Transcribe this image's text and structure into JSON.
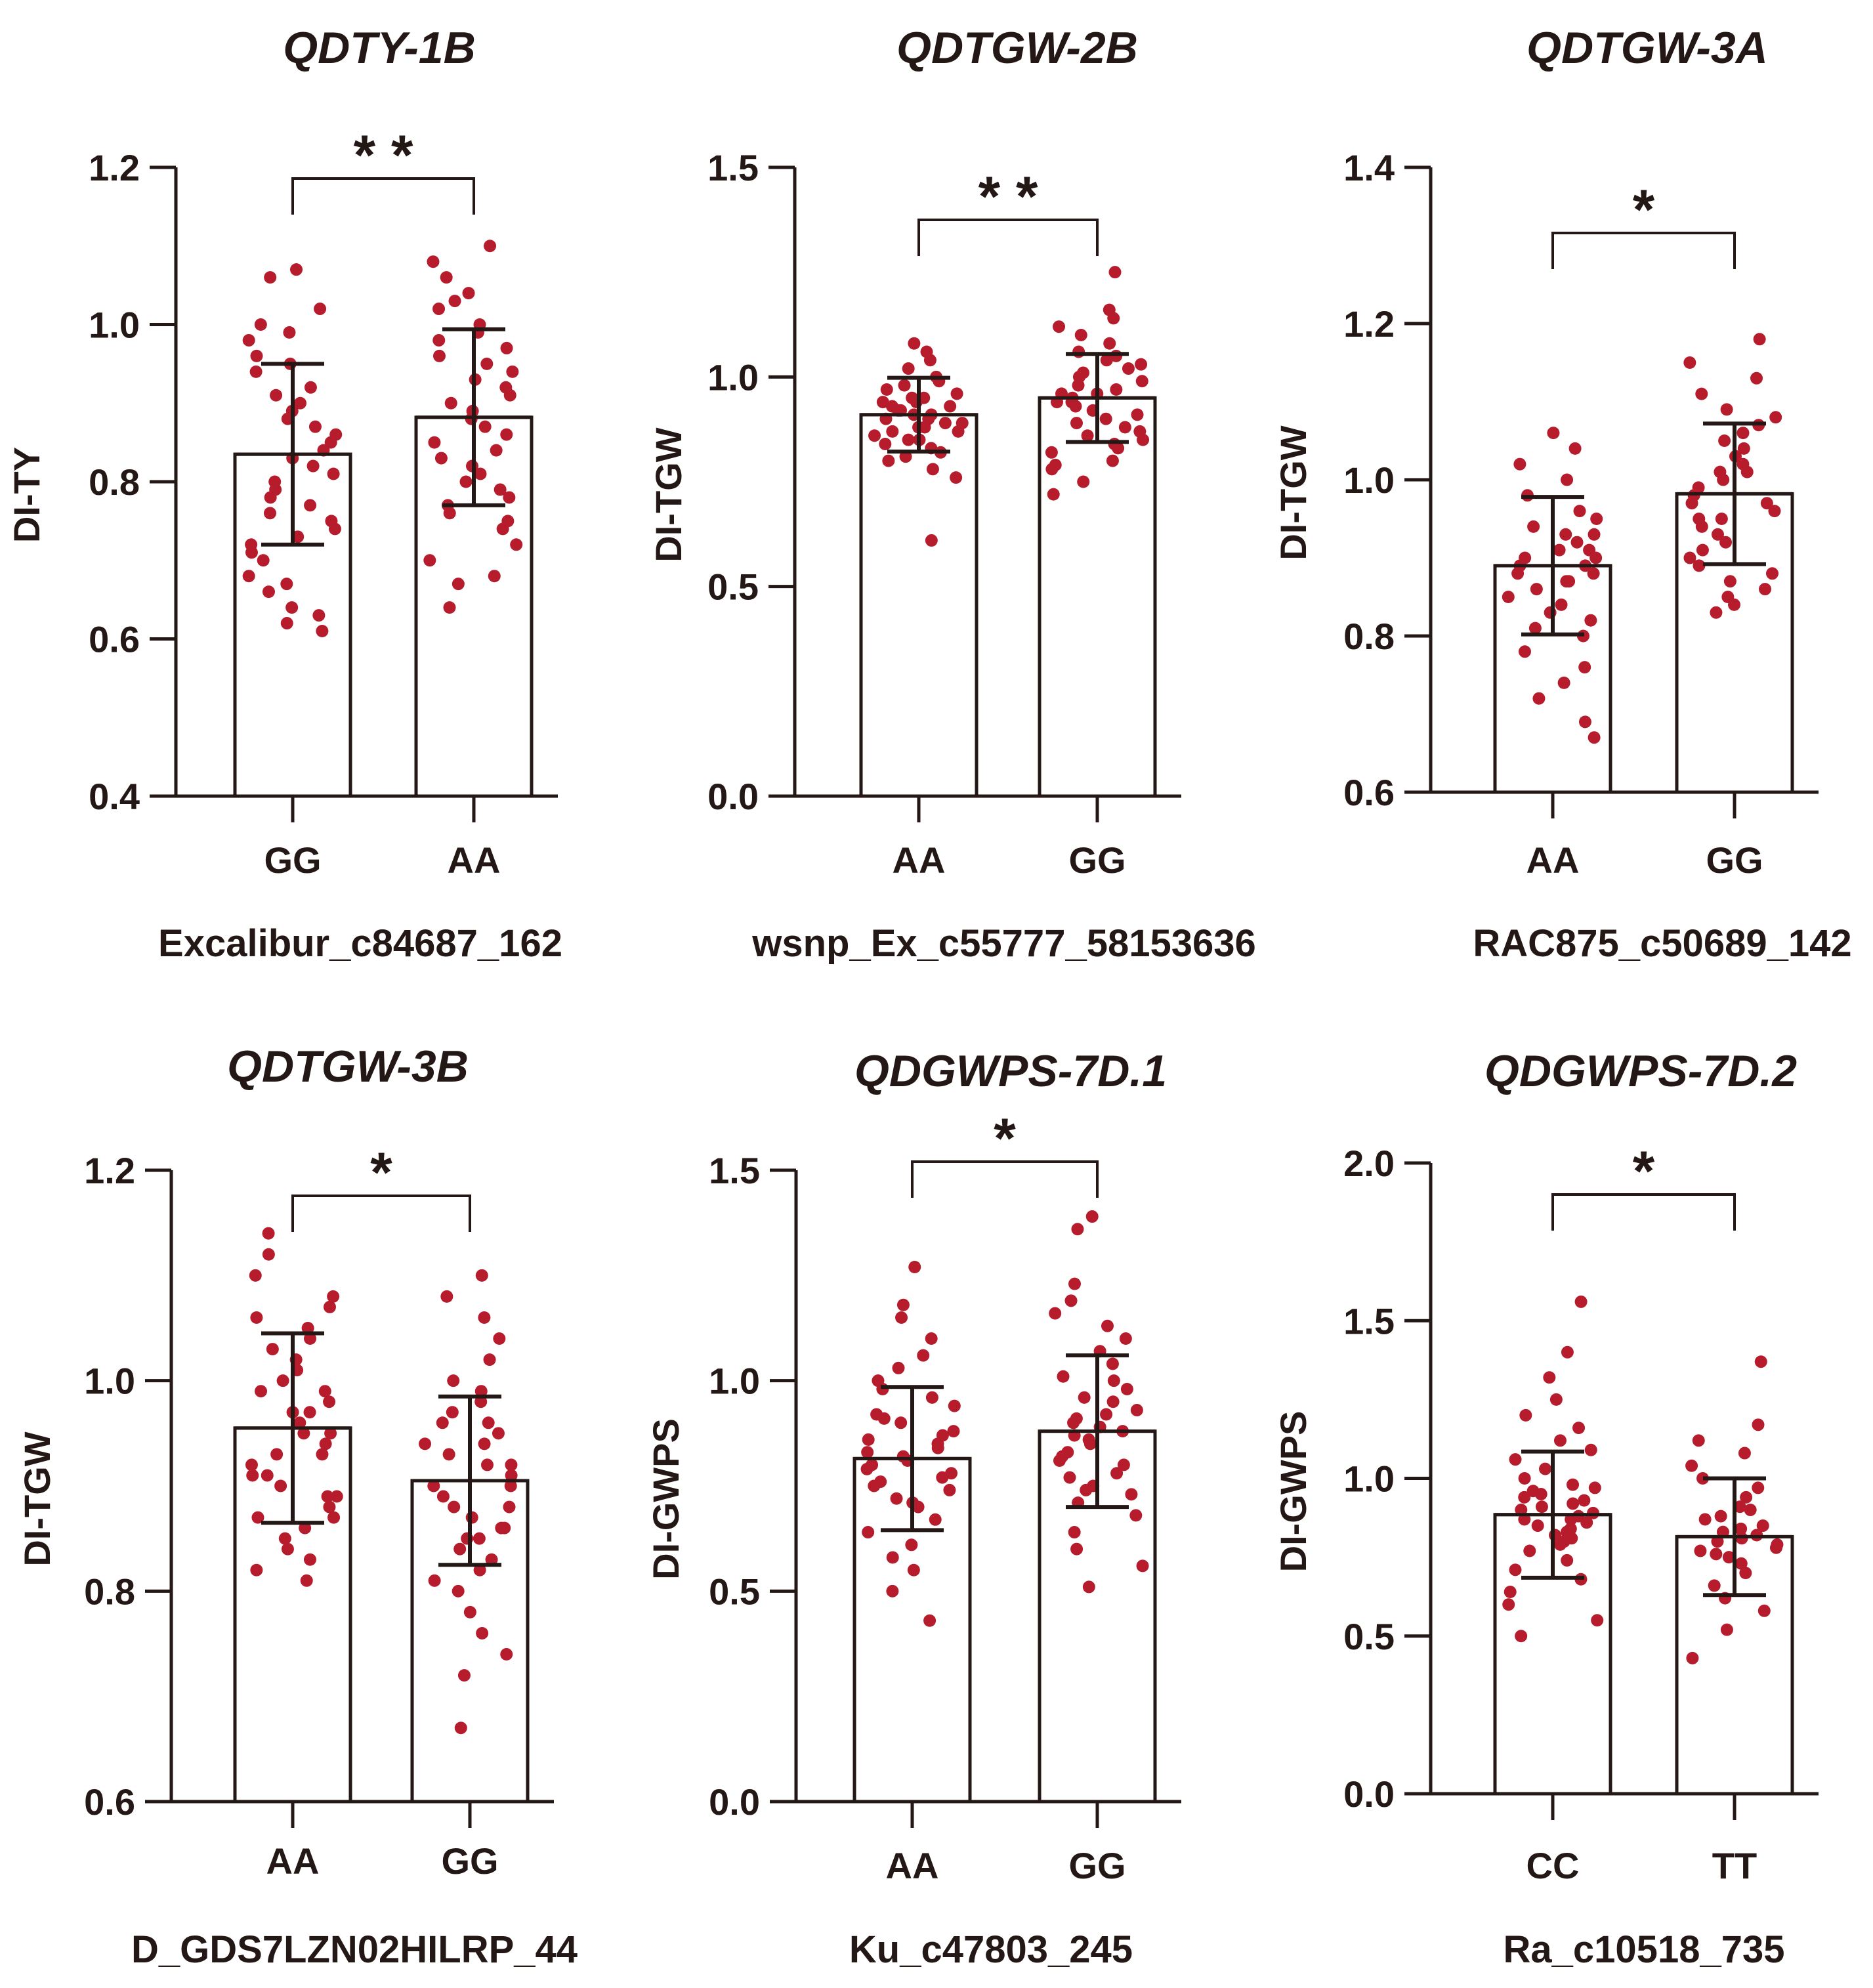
{
  "chart_data": [
    {
      "type": "bar",
      "title": "QDTY-1B",
      "ylabel": "DI-TY",
      "xlabel": "Excalibur_c84687_162",
      "ylim": [
        0.4,
        1.2
      ],
      "yticks": [
        "0.4",
        "0.6",
        "0.8",
        "1.0",
        "1.2"
      ],
      "yticks_values": [
        0.4,
        0.6,
        0.8,
        1.0,
        1.2
      ],
      "categories": [
        "GG",
        "AA"
      ],
      "values": [
        0.835,
        0.882
      ],
      "sd": [
        0.115,
        0.112
      ],
      "significance": "* *",
      "points": [
        [
          0.62,
          0.64,
          0.66,
          0.68,
          0.7,
          0.72,
          0.74,
          0.76,
          0.78,
          0.8,
          0.82,
          0.84,
          0.86,
          0.88,
          0.9,
          0.92,
          0.94,
          0.96,
          0.98,
          1.0,
          1.02,
          1.06,
          0.61,
          0.63,
          0.67,
          0.71,
          0.75,
          0.79,
          0.83,
          0.87,
          0.91,
          0.95,
          0.99,
          1.07,
          0.81,
          0.85,
          0.77,
          0.89,
          0.73
        ],
        [
          0.64,
          0.67,
          0.7,
          0.72,
          0.74,
          0.76,
          0.78,
          0.8,
          0.82,
          0.84,
          0.86,
          0.88,
          0.9,
          0.92,
          0.94,
          0.96,
          0.98,
          1.0,
          1.02,
          1.04,
          1.06,
          1.08,
          1.1,
          0.68,
          0.75,
          0.79,
          0.83,
          0.87,
          0.91,
          0.95,
          0.99,
          1.03,
          0.81,
          0.85,
          0.89,
          0.93,
          0.97,
          0.77
        ]
      ]
    },
    {
      "type": "bar",
      "title": "QDTGW-2B",
      "ylabel": "DI-TGW",
      "xlabel": "wsnp_Ex_c55777_58153636",
      "ylim": [
        0.0,
        1.5
      ],
      "yticks": [
        "0.0",
        "0.5",
        "1.0",
        "1.5"
      ],
      "yticks_values": [
        0.0,
        0.5,
        1.0,
        1.5
      ],
      "categories": [
        "AA",
        "GG"
      ],
      "values": [
        0.91,
        0.95
      ],
      "sd": [
        0.088,
        0.105
      ],
      "significance": "* *",
      "points": [
        [
          0.61,
          0.76,
          0.78,
          0.8,
          0.82,
          0.83,
          0.84,
          0.85,
          0.86,
          0.87,
          0.88,
          0.89,
          0.9,
          0.91,
          0.92,
          0.93,
          0.94,
          0.95,
          0.96,
          0.97,
          0.98,
          1.0,
          1.02,
          1.04,
          1.06,
          1.08,
          0.85,
          0.88,
          0.9,
          0.92,
          0.94,
          0.89,
          0.91,
          0.87,
          0.93,
          0.95,
          0.81,
          0.99
        ],
        [
          0.72,
          0.75,
          0.78,
          0.8,
          0.82,
          0.84,
          0.86,
          0.88,
          0.9,
          0.92,
          0.94,
          0.96,
          0.98,
          1.0,
          1.02,
          1.04,
          1.06,
          1.08,
          1.1,
          1.12,
          1.16,
          1.25,
          0.85,
          0.89,
          0.93,
          0.97,
          1.01,
          0.91,
          0.95,
          0.99,
          1.03,
          0.87,
          0.83,
          0.79,
          1.05,
          0.96,
          0.94,
          1.14
        ]
      ]
    },
    {
      "type": "bar",
      "title": "QDTGW-3A",
      "ylabel": "DI-TGW",
      "xlabel": "RAC875_c50689_142",
      "ylim": [
        0.6,
        1.4
      ],
      "yticks": [
        "0.6",
        "0.8",
        "1.0",
        "1.2",
        "1.4"
      ],
      "yticks_values": [
        0.6,
        0.8,
        1.0,
        1.2,
        1.4
      ],
      "categories": [
        "AA",
        "GG"
      ],
      "values": [
        0.89,
        0.982
      ],
      "sd": [
        0.088,
        0.09
      ],
      "significance": "*",
      "points": [
        [
          0.67,
          0.69,
          0.72,
          0.74,
          0.76,
          0.78,
          0.8,
          0.82,
          0.84,
          0.85,
          0.86,
          0.87,
          0.88,
          0.89,
          0.9,
          0.91,
          0.92,
          0.93,
          0.94,
          0.96,
          0.98,
          1.0,
          1.02,
          1.04,
          1.06,
          0.83,
          0.87,
          0.89,
          0.91,
          0.93,
          0.81,
          0.95,
          0.88,
          0.9
        ],
        [
          0.83,
          0.85,
          0.87,
          0.89,
          0.91,
          0.93,
          0.95,
          0.97,
          0.99,
          1.01,
          1.03,
          1.05,
          1.07,
          1.09,
          1.11,
          1.13,
          1.15,
          1.18,
          0.86,
          0.9,
          0.94,
          0.98,
          1.02,
          1.06,
          0.88,
          0.92,
          0.96,
          1.0,
          1.04,
          0.84,
          1.08,
          0.97,
          0.95,
          1.01
        ]
      ]
    },
    {
      "type": "bar",
      "title": "QDTGW-3B",
      "ylabel": "DI-TGW",
      "xlabel": "D_GDS7LZN02HILRP_44",
      "ylim": [
        0.6,
        1.2
      ],
      "yticks": [
        "0.6",
        "0.8",
        "1.0",
        "1.2"
      ],
      "yticks_values": [
        0.6,
        0.8,
        1.0,
        1.2
      ],
      "categories": [
        "AA",
        "GG"
      ],
      "values": [
        0.955,
        0.905
      ],
      "sd": [
        0.09,
        0.08
      ],
      "significance": "*",
      "points": [
        [
          0.81,
          0.82,
          0.83,
          0.84,
          0.85,
          0.86,
          0.87,
          0.88,
          0.89,
          0.9,
          0.91,
          0.92,
          0.93,
          0.94,
          0.95,
          0.96,
          0.97,
          0.98,
          0.99,
          1.0,
          1.01,
          1.02,
          1.03,
          1.04,
          1.05,
          1.06,
          1.07,
          1.08,
          1.1,
          1.12,
          1.14,
          0.87,
          0.91,
          0.95,
          0.99,
          0.89,
          0.93,
          0.97
        ],
        [
          0.67,
          0.72,
          0.74,
          0.76,
          0.78,
          0.8,
          0.81,
          0.82,
          0.83,
          0.84,
          0.85,
          0.86,
          0.87,
          0.88,
          0.89,
          0.9,
          0.91,
          0.92,
          0.93,
          0.94,
          0.95,
          0.96,
          0.97,
          0.98,
          0.99,
          1.0,
          1.02,
          1.04,
          1.06,
          1.08,
          1.1,
          0.86,
          0.88,
          0.9,
          0.92,
          0.94,
          0.96,
          0.85
        ]
      ]
    },
    {
      "type": "bar",
      "title": "QDGWPS-7D.1",
      "ylabel": "DI-GWPS",
      "xlabel": "Ku_c47803_245",
      "ylim": [
        0.0,
        1.5
      ],
      "yticks": [
        "0.0",
        "0.5",
        "1.0",
        "1.5"
      ],
      "yticks_values": [
        0.0,
        0.5,
        1.0,
        1.5
      ],
      "categories": [
        "AA",
        "GG"
      ],
      "values": [
        0.815,
        0.88
      ],
      "sd": [
        0.17,
        0.18
      ],
      "significance": "*",
      "points": [
        [
          0.43,
          0.5,
          0.55,
          0.58,
          0.61,
          0.64,
          0.67,
          0.7,
          0.72,
          0.74,
          0.76,
          0.78,
          0.8,
          0.82,
          0.84,
          0.86,
          0.88,
          0.9,
          0.92,
          0.94,
          0.96,
          0.98,
          1.0,
          1.03,
          1.06,
          1.1,
          1.15,
          1.18,
          1.27,
          0.71,
          0.75,
          0.79,
          0.83,
          0.87,
          0.91,
          0.77,
          0.81,
          0.85
        ],
        [
          0.51,
          0.56,
          0.6,
          0.64,
          0.68,
          0.71,
          0.74,
          0.77,
          0.8,
          0.83,
          0.86,
          0.89,
          0.92,
          0.95,
          0.98,
          1.01,
          1.04,
          1.07,
          1.1,
          1.13,
          1.16,
          1.19,
          1.23,
          1.36,
          1.39,
          0.73,
          0.78,
          0.82,
          0.87,
          0.91,
          0.96,
          1.0,
          0.85,
          0.88,
          0.93,
          0.81,
          0.75,
          0.9
        ]
      ]
    },
    {
      "type": "bar",
      "title": "QDGWPS-7D.2",
      "ylabel": "DI-GWPS",
      "xlabel": "Ra_c10518_735",
      "ylim": [
        0.0,
        2.0
      ],
      "yticks": [
        "0.0",
        "0.5",
        "1.0",
        "1.5",
        "2.0"
      ],
      "yticks_values": [
        0.0,
        0.5,
        1.0,
        1.5,
        2.0
      ],
      "categories": [
        "CC",
        "TT"
      ],
      "values": [
        0.885,
        0.815
      ],
      "sd": [
        0.2,
        0.185
      ],
      "significance": "*",
      "points": [
        [
          0.5,
          0.55,
          0.6,
          0.64,
          0.68,
          0.71,
          0.74,
          0.77,
          0.8,
          0.82,
          0.84,
          0.86,
          0.88,
          0.9,
          0.92,
          0.94,
          0.96,
          0.98,
          1.0,
          1.03,
          1.06,
          1.09,
          1.12,
          1.16,
          1.2,
          1.25,
          1.32,
          1.4,
          1.56,
          0.79,
          0.83,
          0.87,
          0.91,
          0.95,
          0.85,
          0.89,
          0.93,
          0.81,
          0.87,
          0.97
        ],
        [
          0.43,
          0.52,
          0.58,
          0.62,
          0.66,
          0.7,
          0.73,
          0.76,
          0.79,
          0.82,
          0.85,
          0.88,
          0.91,
          0.94,
          0.97,
          1.0,
          1.04,
          1.08,
          1.12,
          1.17,
          1.37,
          0.75,
          0.78,
          0.81,
          0.84,
          0.87,
          0.9,
          0.8,
          0.83,
          0.77
        ]
      ]
    }
  ]
}
